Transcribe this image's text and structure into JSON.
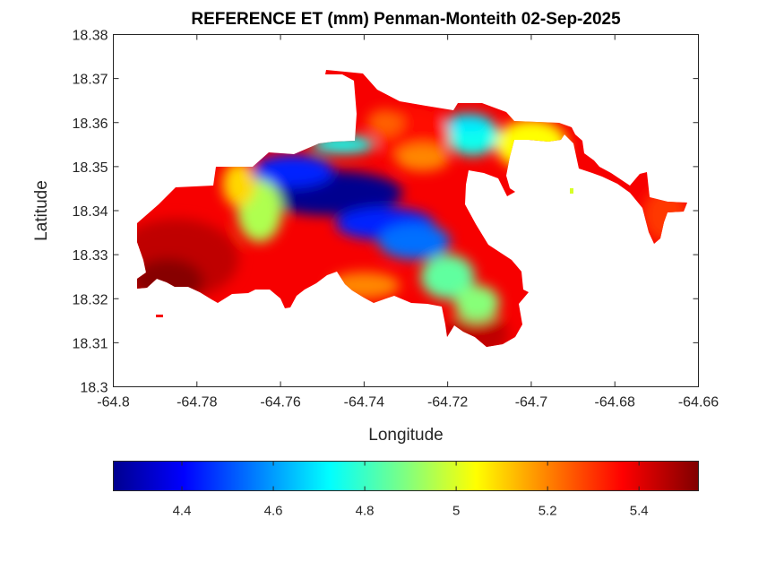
{
  "chart_data": {
    "type": "heatmap",
    "title": "REFERENCE ET (mm) Penman-Monteith 02-Sep-2025",
    "xlabel": "Longitude",
    "ylabel": "Latitude",
    "xlim": [
      -64.8,
      -64.66
    ],
    "ylim": [
      18.3,
      18.38
    ],
    "xticks": [
      -64.8,
      -64.78,
      -64.76,
      -64.74,
      -64.72,
      -64.7,
      -64.68,
      -64.66
    ],
    "xtick_labels": [
      "-64.8",
      "-64.78",
      "-64.76",
      "-64.74",
      "-64.72",
      "-64.7",
      "-64.68",
      "-64.66"
    ],
    "yticks": [
      18.3,
      18.31,
      18.32,
      18.33,
      18.34,
      18.35,
      18.36,
      18.37,
      18.38
    ],
    "ytick_labels": [
      "18.3",
      "18.31",
      "18.32",
      "18.33",
      "18.34",
      "18.35",
      "18.36",
      "18.37",
      "18.38"
    ],
    "colorbar": {
      "colormap": "jet",
      "range": [
        4.25,
        5.53
      ],
      "ticks": [
        4.4,
        4.6,
        4.8,
        5.0,
        5.2,
        5.4
      ],
      "tick_labels": [
        "4.4",
        "4.6",
        "4.8",
        "5",
        "5.2",
        "5.4"
      ],
      "placement": "bottom"
    },
    "regions": [
      {
        "description": "western peninsula",
        "lon": -64.785,
        "lat": 18.329,
        "value": 5.45
      },
      {
        "description": "southwest coast",
        "lon": -64.787,
        "lat": 18.324,
        "value": 5.52
      },
      {
        "description": "central ridge low",
        "lon": -64.748,
        "lat": 18.344,
        "value": 4.27
      },
      {
        "description": "central band",
        "lon": -64.735,
        "lat": 18.337,
        "value": 4.45
      },
      {
        "description": "north bay",
        "lon": -64.714,
        "lat": 18.357,
        "value": 4.75
      },
      {
        "description": "north coast",
        "lon": -64.728,
        "lat": 18.357,
        "value": 5.35
      },
      {
        "description": "eastern coast",
        "lon": -64.7,
        "lat": 18.355,
        "value": 5.05
      },
      {
        "description": "east end",
        "lon": -64.668,
        "lat": 18.339,
        "value": 5.3
      },
      {
        "description": "southeast point",
        "lon": -64.713,
        "lat": 18.312,
        "value": 5.45
      }
    ]
  }
}
